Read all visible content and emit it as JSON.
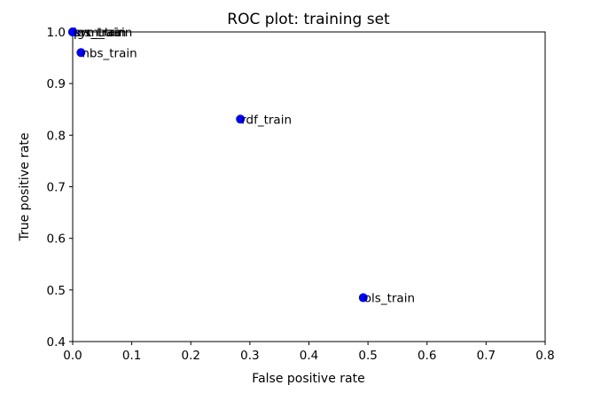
{
  "chart_data": {
    "type": "scatter",
    "title": "ROC plot: training set",
    "xlabel": "False positive rate",
    "ylabel": "True positive rate",
    "xlim": [
      0.0,
      0.8
    ],
    "ylim": [
      0.4,
      1.0
    ],
    "xticks": [
      "0.0",
      "0.1",
      "0.2",
      "0.3",
      "0.4",
      "0.5",
      "0.6",
      "0.7",
      "0.8"
    ],
    "yticks": [
      "0.4",
      "0.5",
      "0.6",
      "0.7",
      "0.8",
      "0.9",
      "1.0"
    ],
    "grid": false,
    "marker_color": "#0000ff",
    "points": [
      {
        "label": "ols_train",
        "x": 0.492,
        "y": 0.485
      },
      {
        "label": "rdf_train",
        "x": 0.284,
        "y": 0.831
      },
      {
        "label": "nbs_train",
        "x": 0.014,
        "y": 0.96
      },
      {
        "label": "lgs_train",
        "x": 0.0,
        "y": 1.0
      },
      {
        "label": "svm_train",
        "x": 0.0,
        "y": 1.0
      },
      {
        "label": "prc_train",
        "x": 0.0,
        "y": 1.0
      }
    ],
    "overlap_annotation": "lgs/svm/prc overlap"
  }
}
